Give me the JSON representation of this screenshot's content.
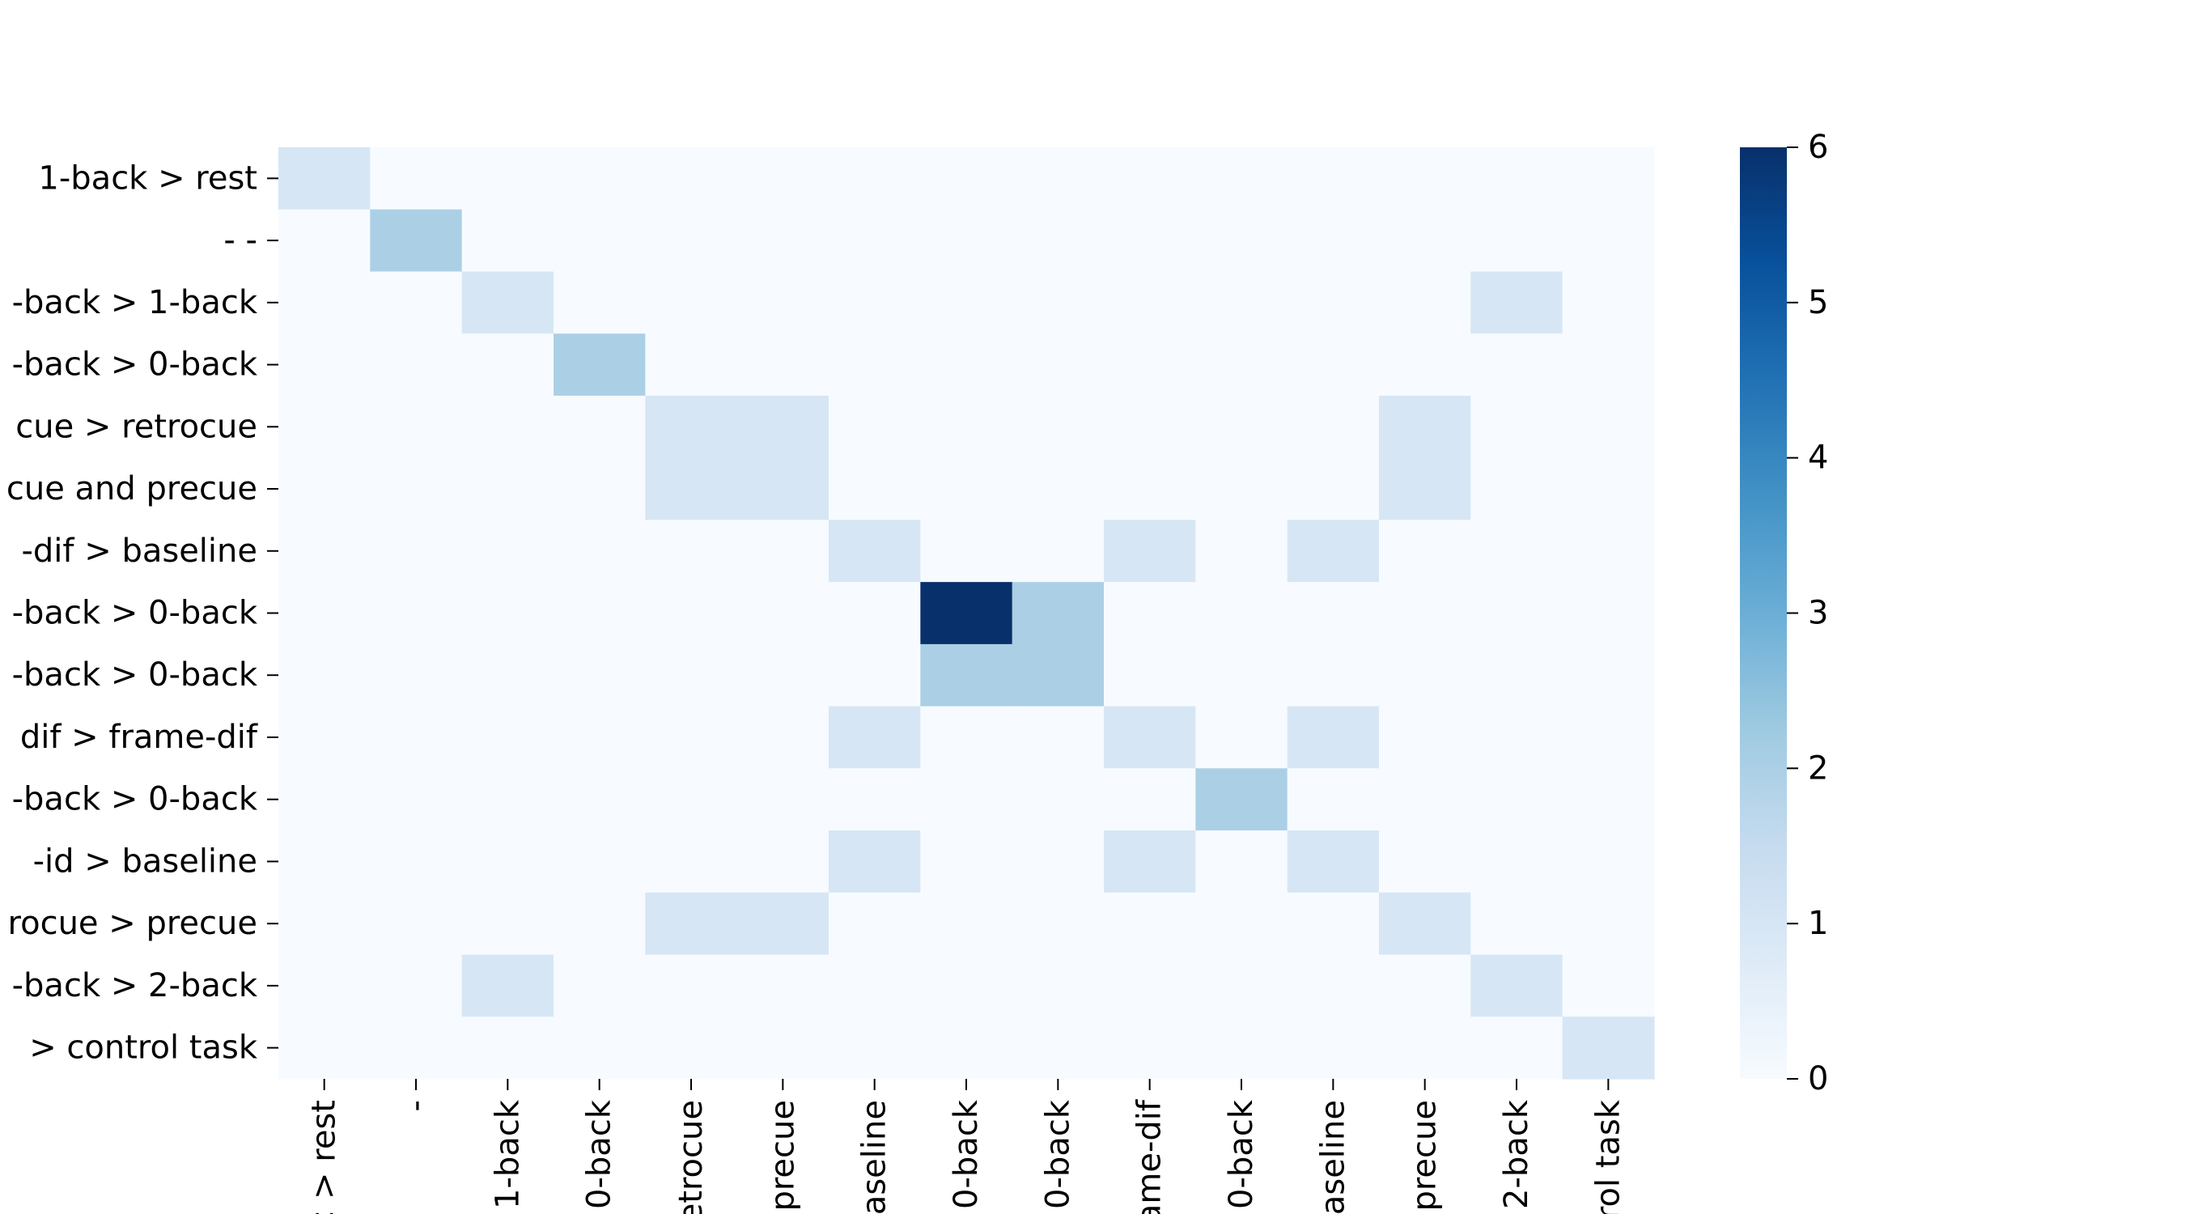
{
  "chart_data": {
    "type": "heatmap",
    "title": "",
    "xlabel": "",
    "ylabel": "",
    "row_labels": [
      "1-back > rest",
      "- -",
      "-back > 1-back",
      "-back > 0-back",
      "cue > retrocue",
      "cue and precue",
      "-dif > baseline",
      "-back > 0-back",
      "-back > 0-back",
      "dif > frame-dif",
      "-back > 0-back",
      "-id > baseline",
      "rocue > precue",
      "-back > 2-back",
      "> control task"
    ],
    "col_labels": [
      "< > rest",
      "-",
      "1-back",
      "0-back",
      "etrocue",
      "precue",
      "baseline",
      "0-back",
      "0-back",
      "ame-dif",
      "0-back",
      "baseline",
      "precue",
      "2-back",
      "rol task"
    ],
    "values": [
      [
        1,
        0,
        0,
        0,
        0,
        0,
        0,
        0,
        0,
        0,
        0,
        0,
        0,
        0,
        0
      ],
      [
        0,
        2,
        0,
        0,
        0,
        0,
        0,
        0,
        0,
        0,
        0,
        0,
        0,
        0,
        0
      ],
      [
        0,
        0,
        1,
        0,
        0,
        0,
        0,
        0,
        0,
        0,
        0,
        0,
        0,
        1,
        0
      ],
      [
        0,
        0,
        0,
        2,
        0,
        0,
        0,
        0,
        0,
        0,
        0,
        0,
        0,
        0,
        0
      ],
      [
        0,
        0,
        0,
        0,
        1,
        1,
        0,
        0,
        0,
        0,
        0,
        0,
        1,
        0,
        0
      ],
      [
        0,
        0,
        0,
        0,
        1,
        1,
        0,
        0,
        0,
        0,
        0,
        0,
        1,
        0,
        0
      ],
      [
        0,
        0,
        0,
        0,
        0,
        0,
        1,
        0,
        0,
        1,
        0,
        1,
        0,
        0,
        0
      ],
      [
        0,
        0,
        0,
        0,
        0,
        0,
        0,
        6,
        2,
        0,
        0,
        0,
        0,
        0,
        0
      ],
      [
        0,
        0,
        0,
        0,
        0,
        0,
        0,
        2,
        2,
        0,
        0,
        0,
        0,
        0,
        0
      ],
      [
        0,
        0,
        0,
        0,
        0,
        0,
        1,
        0,
        0,
        1,
        0,
        1,
        0,
        0,
        0
      ],
      [
        0,
        0,
        0,
        0,
        0,
        0,
        0,
        0,
        0,
        0,
        2,
        0,
        0,
        0,
        0
      ],
      [
        0,
        0,
        0,
        0,
        0,
        0,
        1,
        0,
        0,
        1,
        0,
        1,
        0,
        0,
        0
      ],
      [
        0,
        0,
        0,
        0,
        1,
        1,
        0,
        0,
        0,
        0,
        0,
        0,
        1,
        0,
        0
      ],
      [
        0,
        0,
        1,
        0,
        0,
        0,
        0,
        0,
        0,
        0,
        0,
        0,
        0,
        1,
        0
      ],
      [
        0,
        0,
        0,
        0,
        0,
        0,
        0,
        0,
        0,
        0,
        0,
        0,
        0,
        0,
        1
      ]
    ],
    "colorbar": {
      "min": 0,
      "max": 6,
      "ticks": [
        0,
        1,
        2,
        3,
        4,
        5,
        6
      ],
      "colormap": "Blues",
      "colors": [
        "#f7fbff",
        "#deebf7",
        "#c6dbef",
        "#9ecae1",
        "#6baed6",
        "#4292c6",
        "#2171b5",
        "#08519c",
        "#08306b"
      ]
    },
    "legend_position": "right",
    "grid": false
  }
}
